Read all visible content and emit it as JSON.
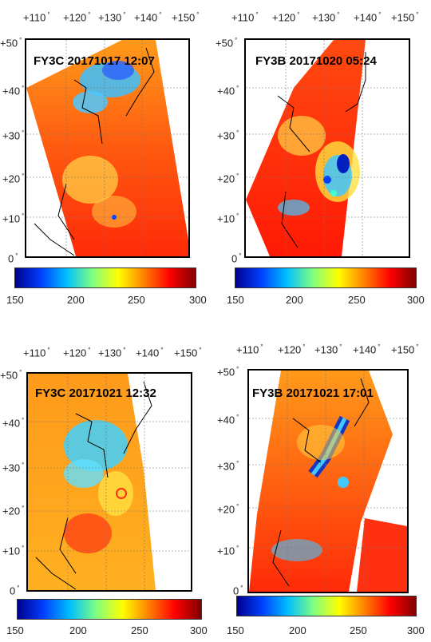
{
  "colors": {
    "colormap": [
      "#00008f",
      "#0040ff",
      "#00c0ff",
      "#80ff80",
      "#ffff00",
      "#ff8000",
      "#ff0000",
      "#800000"
    ],
    "background": "#ffffff",
    "coast": "#000000"
  },
  "axes": {
    "lon_ticks": [
      "+110",
      "+120",
      "+130",
      "+140",
      "+150"
    ],
    "lat_ticks": [
      "+50",
      "+40",
      "+30",
      "+20",
      "+10",
      "0"
    ],
    "degree_symbol": "°"
  },
  "colorbar": {
    "ticks": [
      "150",
      "200",
      "250",
      "300"
    ],
    "range": [
      150,
      300
    ]
  },
  "panels": [
    {
      "id": "tl",
      "title": "FY3C 20171017 12:07"
    },
    {
      "id": "tr",
      "title": "FY3B 20171020 05:24"
    },
    {
      "id": "bl",
      "title": "FY3C 20171021 12:32"
    },
    {
      "id": "br",
      "title": "FY3B 20171021 17:01"
    }
  ]
}
